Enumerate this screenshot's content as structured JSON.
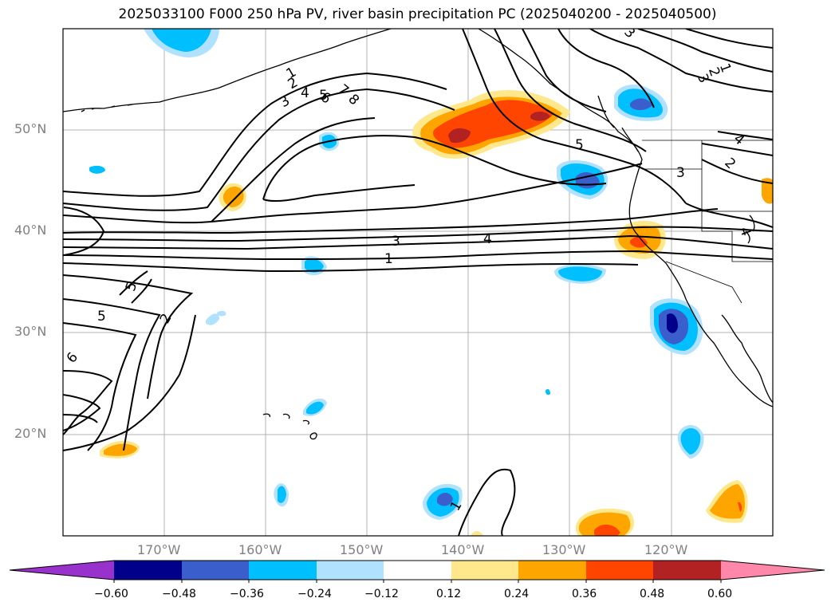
{
  "title": "2025033100 F000 250 hPa PV, river basin precipitation PC (2025040200 - 2025040500)",
  "map": {
    "lat_labels": [
      "50°N",
      "40°N",
      "30°N",
      "20°N"
    ],
    "lon_labels": [
      "170°W",
      "160°W",
      "150°W",
      "140°W",
      "130°W",
      "120°W"
    ],
    "contour_labels": [
      "1",
      "2",
      "3",
      "4",
      "5",
      "6",
      "7",
      "8",
      "3",
      "4",
      "1",
      "2",
      "5",
      "6",
      "5",
      "3",
      "4",
      "5",
      "1",
      "2",
      "3",
      "4",
      "2",
      "3",
      "1"
    ]
  },
  "colorbar": {
    "ticks": [
      "−0.60",
      "−0.48",
      "−0.36",
      "−0.24",
      "−0.12",
      "0.12",
      "0.24",
      "0.36",
      "0.48",
      "0.60"
    ],
    "colors": [
      "#9932cc",
      "#00008b",
      "#3a5fcd",
      "#00bfff",
      "#b0e2ff",
      "#ffffff",
      "#ffe88c",
      "#ffa500",
      "#ff4500",
      "#b22222",
      "#ff88aa"
    ]
  }
}
